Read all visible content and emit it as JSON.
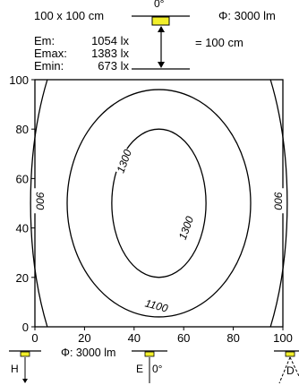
{
  "header": {
    "area": "100 x 100 cm",
    "angle": "0°",
    "flux": "Φ: 3000 lm",
    "em_label": "Em:",
    "em_value": "1054 lx",
    "emax_label": "Emax:",
    "emax_value": "1383 lx",
    "emin_label": "Emin:",
    "emin_value": "673 lx",
    "distance": "= 100 cm"
  },
  "chart_data": {
    "type": "contour",
    "x_ticks": [
      "0",
      "20",
      "40",
      "60",
      "80",
      "100"
    ],
    "y_ticks": [
      "0",
      "20",
      "40",
      "60",
      "80",
      "100"
    ],
    "xlim": [
      0,
      100
    ],
    "ylim": [
      0,
      100
    ],
    "contours": [
      {
        "level": 1300,
        "label": "1300",
        "label2": "1300",
        "center": [
          50,
          50
        ],
        "rx": 19,
        "ry": 30
      },
      {
        "level": 1100,
        "label": "1100",
        "center": [
          50,
          50
        ],
        "rx": 37,
        "ry": 46
      },
      {
        "level": 900,
        "label": "900",
        "label2": "900",
        "side": "left-right"
      }
    ]
  },
  "footer": {
    "flux": "Φ: 3000 lm",
    "h_label": "H",
    "e_label": "E",
    "e_angle": "0°",
    "d_label": "D"
  },
  "colors": {
    "luminaire": "#f2ef2a"
  }
}
